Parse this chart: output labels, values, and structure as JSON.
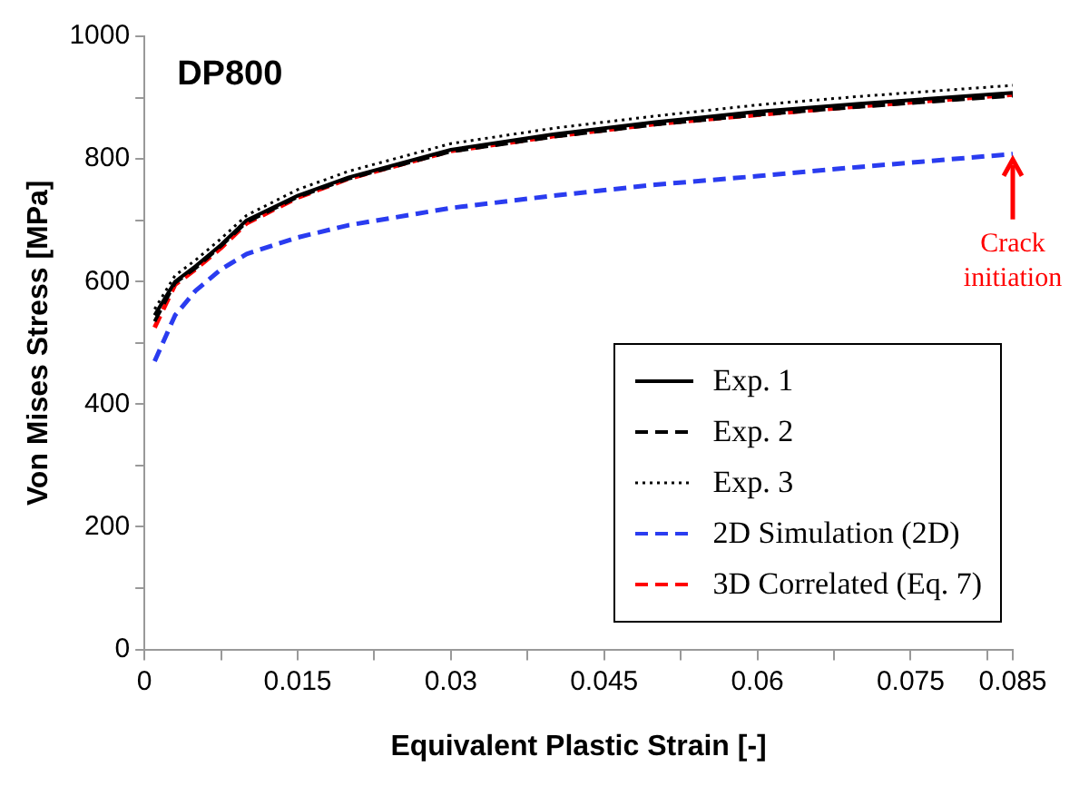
{
  "chart_data": {
    "type": "line",
    "title": "DP800",
    "xlabel": "Equivalent Plastic Strain [-]",
    "ylabel": "Von Mises Stress [MPa]",
    "x": [
      0.001,
      0.003,
      0.005,
      0.0075,
      0.01,
      0.015,
      0.02,
      0.03,
      0.04,
      0.05,
      0.06,
      0.07,
      0.085
    ],
    "series": [
      {
        "name": "Exp. 1",
        "color": "#000000",
        "line_style": "solid",
        "values": [
          545,
          600,
          625,
          660,
          700,
          740,
          770,
          815,
          840,
          860,
          877,
          890,
          908
        ]
      },
      {
        "name": "Exp. 2",
        "color": "#000000",
        "line_style": "dashed",
        "values": [
          535,
          598,
          622,
          658,
          697,
          738,
          768,
          812,
          836,
          856,
          872,
          885,
          903
        ]
      },
      {
        "name": "Exp. 3",
        "color": "#000000",
        "line_style": "dotted",
        "values": [
          555,
          610,
          635,
          670,
          708,
          750,
          780,
          825,
          850,
          870,
          888,
          902,
          920
        ]
      },
      {
        "name": "2D Simulation (2D)",
        "color": "#2a3cf0",
        "line_style": "dashed",
        "values": [
          470,
          545,
          585,
          620,
          645,
          672,
          692,
          720,
          740,
          758,
          772,
          787,
          808
        ]
      },
      {
        "name": "3D Correlated (Eq. 7)",
        "color": "#ff0000",
        "line_style": "dashed",
        "values": [
          525,
          595,
          620,
          655,
          695,
          737,
          768,
          813,
          837,
          857,
          872,
          886,
          905
        ]
      }
    ],
    "xlim": [
      0,
      0.085
    ],
    "xticks": [
      0,
      {
        "value": 0.0075,
        "label": null
      },
      0.015,
      {
        "value": 0.0225,
        "label": null
      },
      0.03,
      {
        "value": 0.0375,
        "label": null
      },
      0.045,
      {
        "value": 0.0525,
        "label": null
      },
      0.06,
      {
        "value": 0.0675,
        "label": null
      },
      0.075,
      {
        "value": 0.0825,
        "label": null
      },
      0.085
    ],
    "ylim": [
      0,
      1000
    ],
    "yticks": [
      0,
      {
        "value": 100,
        "label": null
      },
      200,
      {
        "value": 300,
        "label": null
      },
      400,
      {
        "value": 500,
        "label": null
      },
      600,
      {
        "value": 700,
        "label": null
      },
      800,
      {
        "value": 900,
        "label": null
      },
      1000
    ],
    "annotations": [
      {
        "text": "Crack initiation",
        "x": 0.085,
        "y": 808
      }
    ],
    "grid": false,
    "legend": "bottom right",
    "marker": "none"
  }
}
